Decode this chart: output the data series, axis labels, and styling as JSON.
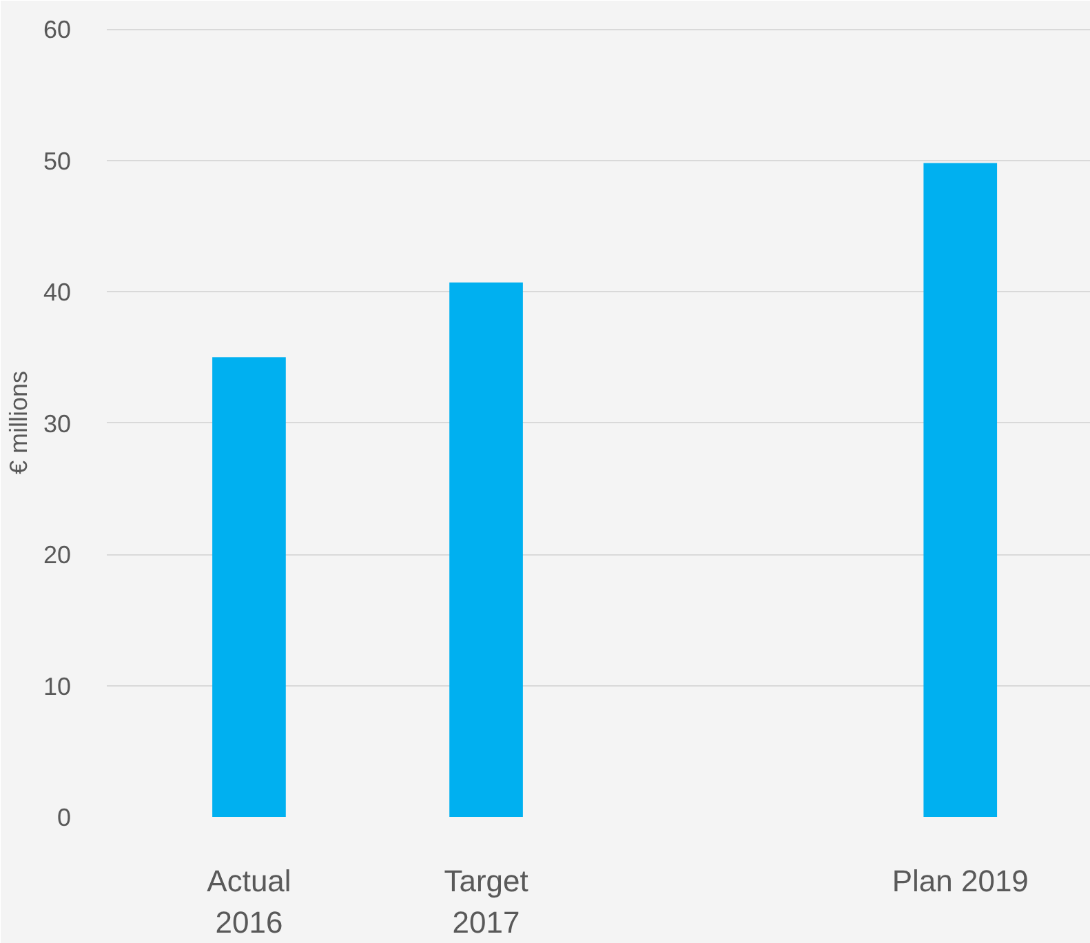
{
  "chart_data": {
    "type": "bar",
    "ylabel": "€ millions",
    "categories": [
      "Actual\n2016",
      "Target\n2017",
      null,
      "Plan 2019"
    ],
    "values": [
      35.0,
      40.7,
      null,
      49.8
    ],
    "color": "#00b0f0",
    "ylim": [
      0,
      60
    ],
    "yticks": [
      0,
      10,
      20,
      30,
      40,
      50,
      60
    ],
    "grid": "y"
  }
}
